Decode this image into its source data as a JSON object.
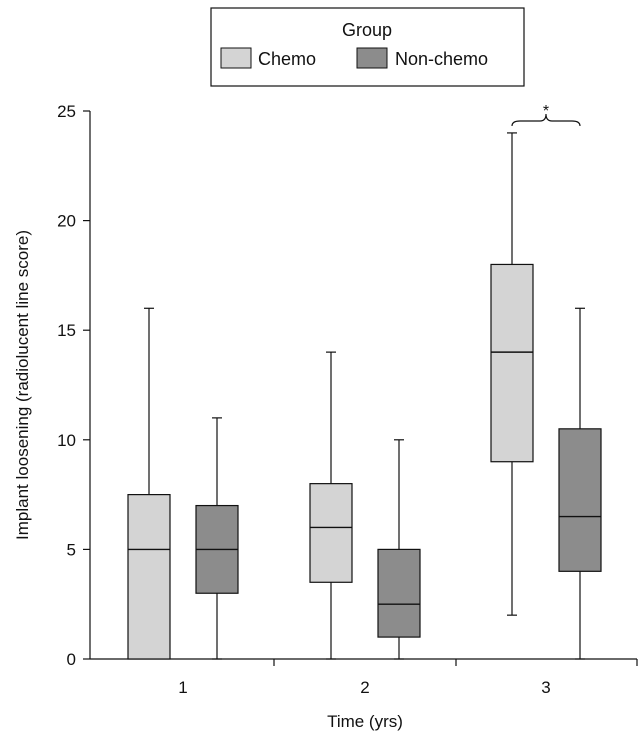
{
  "chart_data": {
    "type": "box",
    "xlabel": "Time (yrs)",
    "ylabel": "Implant loosening (radiolucent line score)",
    "ylim": [
      0,
      25
    ],
    "yticks": [
      "0",
      "5",
      "10",
      "15",
      "20",
      "25"
    ],
    "categories": [
      "1",
      "2",
      "3"
    ],
    "legend": {
      "title": "Group",
      "position": "top-center"
    },
    "series": [
      {
        "name": "Chemo",
        "color": "#d4d4d4",
        "boxes": [
          {
            "min": 0,
            "q1": 0,
            "median": 5,
            "q3": 7.5,
            "max": 16
          },
          {
            "min": 0,
            "q1": 3.5,
            "median": 6,
            "q3": 8,
            "max": 14
          },
          {
            "min": 2,
            "q1": 9,
            "median": 14,
            "q3": 18,
            "max": 24
          }
        ]
      },
      {
        "name": "Non-chemo",
        "color": "#8c8c8c",
        "boxes": [
          {
            "min": 0,
            "q1": 3,
            "median": 5,
            "q3": 7,
            "max": 11
          },
          {
            "min": 0,
            "q1": 1,
            "median": 2.5,
            "q3": 5,
            "max": 10
          },
          {
            "min": 0,
            "q1": 4,
            "median": 6.5,
            "q3": 10.5,
            "max": 16
          }
        ]
      }
    ],
    "annotations": [
      {
        "text": "*",
        "category_index": 2
      }
    ]
  }
}
